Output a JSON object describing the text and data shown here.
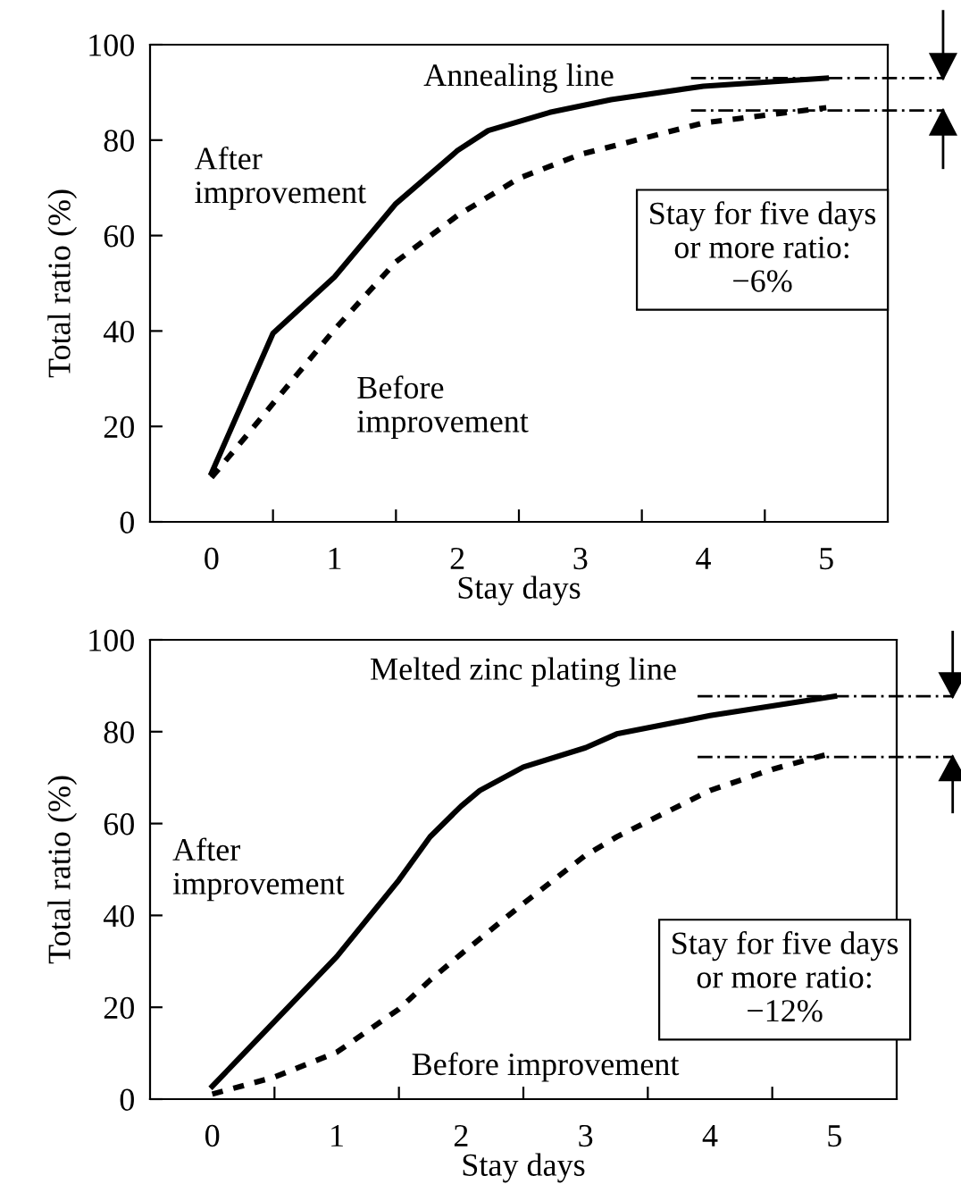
{
  "chart_data": [
    {
      "type": "line",
      "title": "Annealing line",
      "xlabel": "Stay days",
      "ylabel": "Total ratio (%)",
      "xlim": [
        -0.5,
        5.5
      ],
      "ylim": [
        0,
        100
      ],
      "yticks": [
        0,
        20,
        40,
        60,
        80,
        100
      ],
      "xticks": [
        0,
        1,
        2,
        3,
        4,
        5,
        {
          "value": 0.5,
          "label": null
        },
        {
          "value": 1.5,
          "label": null
        },
        {
          "value": 2.5,
          "label": null
        },
        {
          "value": 3.5,
          "label": null
        },
        {
          "value": 4.5,
          "label": null
        }
      ],
      "series": [
        {
          "name": "After\nimprovement",
          "color": "#000000",
          "line_style": "solid",
          "x": [
            0,
            0.5,
            1,
            1.5,
            2,
            2.25,
            2.75,
            3.25,
            4,
            5
          ],
          "values": [
            10.2,
            39.5,
            51.3,
            66.7,
            77.8,
            82,
            85.8,
            88.5,
            91.3,
            93
          ]
        },
        {
          "name": "Before\nimprovement",
          "color": "#000000",
          "line_style": "dotted",
          "x": [
            0,
            0.25,
            0.5,
            1,
            1.5,
            2,
            2.5,
            3,
            4,
            5
          ],
          "values": [
            9.3,
            17,
            24.8,
            40.3,
            54.5,
            64.2,
            72,
            77,
            83.6,
            86.8
          ]
        }
      ],
      "ref_lines": [
        {
          "axis": "y",
          "value": 93,
          "line_style": "dashdot",
          "color": "#000000"
        },
        {
          "axis": "y",
          "value": 86.2,
          "line_style": "dashdot",
          "color": "#000000"
        }
      ],
      "annotations": [
        "Stay for five days\nor more ratio:\n−6%"
      ],
      "legend": false,
      "grid": false,
      "marker": "none"
    },
    {
      "type": "line",
      "title": "Melted zinc plating line",
      "xlabel": "Stay days",
      "ylabel": "Total ratio (%)",
      "xlim": [
        -0.5,
        5.5
      ],
      "ylim": [
        0,
        100
      ],
      "yticks": [
        0,
        20,
        40,
        60,
        80,
        100
      ],
      "xticks": [
        0,
        1,
        2,
        3,
        4,
        5,
        {
          "value": 0.5,
          "label": null
        },
        {
          "value": 1.5,
          "label": null
        },
        {
          "value": 2.5,
          "label": null
        },
        {
          "value": 3.5,
          "label": null
        },
        {
          "value": 4.5,
          "label": null
        }
      ],
      "series": [
        {
          "name": "After\nimprovement",
          "color": "#000000",
          "line_style": "solid",
          "x": [
            0,
            0.5,
            1,
            1.5,
            1.75,
            2,
            2.15,
            2.5,
            3,
            3.25,
            4,
            5
          ],
          "values": [
            2.8,
            16.9,
            31,
            47.7,
            57.1,
            63.8,
            67.2,
            72.3,
            76.5,
            79.5,
            83.5,
            87.7
          ]
        },
        {
          "name": "Before improvement",
          "color": "#000000",
          "line_style": "dotted",
          "x": [
            0,
            0.5,
            1,
            1.5,
            1.75,
            2,
            2.5,
            3,
            3.25,
            4,
            4.5,
            5
          ],
          "values": [
            1.1,
            4.8,
            10.2,
            19.6,
            25.9,
            31.6,
            42.6,
            53.1,
            57.1,
            67.2,
            71.8,
            75.5
          ]
        }
      ],
      "ref_lines": [
        {
          "axis": "y",
          "value": 87.7,
          "line_style": "dashdot",
          "color": "#000000"
        },
        {
          "axis": "y",
          "value": 74.5,
          "line_style": "dashdot",
          "color": "#000000"
        }
      ],
      "annotations": [
        "Stay for five days\nor more ratio:\n−12%"
      ],
      "legend": false,
      "grid": false,
      "marker": "none"
    }
  ]
}
